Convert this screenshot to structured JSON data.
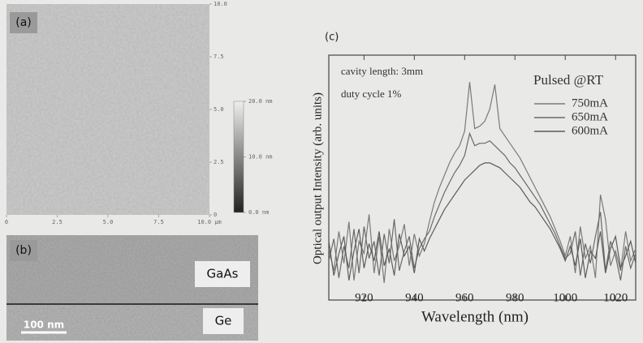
{
  "chart_data": [
    {
      "type": "image",
      "label": "(a)",
      "xlim": [
        0,
        10
      ],
      "xticks": [
        0,
        2.5,
        {
          "value": 5,
          "label": "5.0"
        },
        7.5,
        {
          "value": 10,
          "label": "10.0 µm"
        }
      ],
      "ylim": [
        0,
        10
      ],
      "yticks": [
        0,
        2.5,
        {
          "value": 5,
          "label": "5.0"
        },
        7.5,
        {
          "value": 10,
          "label": "10.0"
        }
      ],
      "clim": [
        0,
        20
      ],
      "cticks": [
        {
          "value": 0,
          "label": "0.0 nm"
        },
        {
          "value": 10,
          "label": "10.0 nm"
        },
        {
          "value": 20,
          "label": "20.0 nm"
        }
      ]
    },
    {
      "type": "line",
      "label": "(c)",
      "x_label": "Wavelength (nm)",
      "y_label": "Optical output Intensity (arb. units)",
      "annotations": [
        "cavity length: 3mm",
        "duty cycle 1%"
      ],
      "legend_title": "Pulsed @RT",
      "legend": "upper right",
      "xlim": [
        906,
        1028
      ],
      "xticks": [
        920,
        940,
        960,
        980,
        1000,
        1020
      ],
      "ylim": [
        0,
        10
      ],
      "x": [
        906,
        908,
        910,
        912,
        914,
        916,
        918,
        920,
        922,
        924,
        926,
        928,
        930,
        932,
        934,
        936,
        938,
        940,
        942,
        944,
        946,
        948,
        950,
        952,
        954,
        956,
        958,
        960,
        962,
        964,
        966,
        968,
        970,
        972,
        974,
        976,
        978,
        980,
        982,
        984,
        986,
        988,
        990,
        992,
        994,
        996,
        998,
        1000,
        1002,
        1004,
        1006,
        1008,
        1010,
        1012,
        1014,
        1016,
        1018,
        1020,
        1022,
        1024,
        1026,
        1028
      ],
      "series": [
        {
          "name": "750mA",
          "color": "#7a7a7a",
          "values": [
            2.1,
            1.2,
            2.8,
            1.5,
            3.2,
            0.8,
            2.4,
            1.9,
            3.5,
            1.1,
            2.6,
            0.7,
            2.9,
            1.6,
            2.2,
            3.1,
            1.4,
            2.7,
            1.8,
            2.3,
            3.2,
            4.0,
            4.6,
            5.1,
            5.6,
            6.0,
            6.3,
            6.9,
            8.9,
            7.0,
            7.1,
            7.3,
            7.8,
            8.8,
            7.0,
            6.7,
            6.4,
            6.1,
            5.8,
            5.4,
            5.0,
            4.6,
            4.2,
            3.8,
            3.4,
            2.9,
            2.4,
            1.8,
            2.6,
            1.1,
            3.0,
            1.7,
            2.2,
            0.9,
            4.3,
            3.3,
            1.4,
            2.0,
            1.2,
            2.8,
            1.6,
            2.1
          ]
        },
        {
          "name": "650mA",
          "color": "#6a6a6a",
          "values": [
            1.6,
            2.5,
            0.9,
            2.2,
            1.3,
            2.9,
            1.1,
            3.0,
            1.7,
            2.4,
            1.0,
            2.7,
            1.5,
            3.3,
            1.2,
            2.0,
            2.6,
            1.3,
            2.1,
            2.5,
            2.8,
            3.4,
            3.9,
            4.4,
            4.8,
            5.2,
            5.5,
            5.9,
            6.8,
            6.3,
            6.4,
            6.4,
            6.5,
            6.3,
            6.1,
            5.9,
            5.6,
            5.4,
            5.1,
            4.8,
            4.5,
            4.2,
            3.9,
            3.5,
            3.1,
            2.7,
            2.2,
            1.7,
            1.9,
            2.8,
            1.0,
            2.3,
            1.5,
            2.6,
            3.6,
            1.2,
            2.4,
            1.8,
            0.8,
            2.2,
            1.3,
            1.9
          ]
        },
        {
          "name": "600mA",
          "color": "#5c5c5c",
          "values": [
            2.4,
            1.0,
            1.9,
            2.6,
            0.8,
            2.0,
            2.9,
            1.3,
            2.3,
            1.6,
            2.8,
            1.4,
            2.1,
            1.0,
            2.7,
            1.8,
            2.2,
            1.1,
            2.5,
            2.0,
            2.5,
            2.9,
            3.3,
            3.7,
            4.0,
            4.3,
            4.6,
            4.9,
            5.1,
            5.3,
            5.5,
            5.6,
            5.6,
            5.5,
            5.4,
            5.2,
            5.0,
            4.8,
            4.6,
            4.3,
            4.0,
            3.8,
            3.5,
            3.2,
            2.9,
            2.5,
            2.1,
            1.6,
            2.2,
            1.4,
            2.5,
            0.9,
            2.0,
            1.7,
            2.8,
            1.1,
            2.1,
            2.6,
            1.3,
            1.8,
            2.4,
            1.5
          ]
        }
      ]
    }
  ],
  "panel_b": {
    "label": "(b)",
    "layers": [
      "GaAs",
      "Ge"
    ],
    "scale_bar": "100 nm"
  }
}
